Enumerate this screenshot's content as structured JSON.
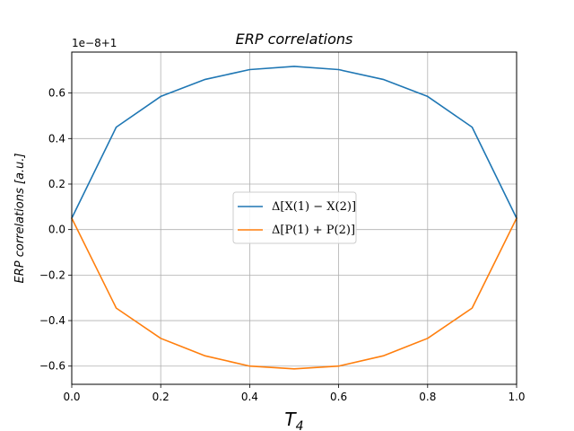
{
  "chart_data": {
    "type": "line",
    "title": "ERP correlations",
    "xlabel": "T",
    "xlabel_sub": "4",
    "ylabel": "ERP correlations [a.u.]",
    "y_offset_label": "1e−8+1",
    "xlim": [
      0.0,
      1.0
    ],
    "ylim": [
      -0.68,
      0.78
    ],
    "grid": true,
    "legend_position": "center",
    "x_ticks": [
      0.0,
      0.2,
      0.4,
      0.6,
      0.8,
      1.0
    ],
    "x_tick_labels": [
      "0.0",
      "0.2",
      "0.4",
      "0.6",
      "0.8",
      "1.0"
    ],
    "y_ticks": [
      -0.6,
      -0.4,
      -0.2,
      0.0,
      0.2,
      0.4,
      0.6
    ],
    "y_tick_labels": [
      "−0.6",
      "−0.4",
      "−0.2",
      "0.0",
      "0.2",
      "0.4",
      "0.6"
    ],
    "x": [
      0.0,
      0.1,
      0.2,
      0.3,
      0.4,
      0.5,
      0.6,
      0.7,
      0.8,
      0.9,
      1.0
    ],
    "series": [
      {
        "name": "Δ[X(1) − X(2)]",
        "color": "#1f77b4",
        "values": [
          0.05,
          0.45,
          0.585,
          0.66,
          0.703,
          0.717,
          0.703,
          0.66,
          0.585,
          0.45,
          0.05
        ]
      },
      {
        "name": "Δ[P(1) + P(2)]",
        "color": "#ff7f0e",
        "values": [
          0.05,
          -0.345,
          -0.478,
          -0.555,
          -0.6,
          -0.612,
          -0.6,
          -0.555,
          -0.478,
          -0.345,
          0.05
        ]
      }
    ]
  }
}
